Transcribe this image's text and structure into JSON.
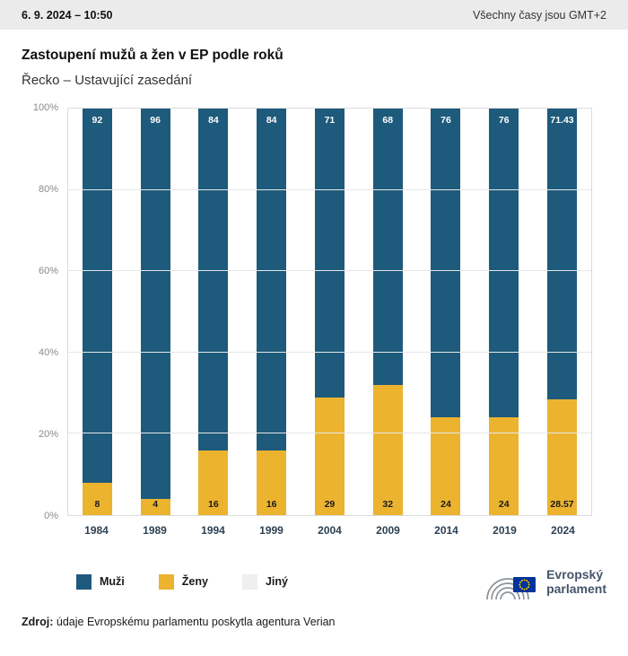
{
  "header": {
    "datetime": "6. 9. 2024 – 10:50",
    "timezone_note": "Všechny časy jsou GMT+2"
  },
  "title": "Zastoupení mužů a žen v EP podle roků",
  "subtitle": "Řecko – Ustavující zasedání",
  "chart_data": {
    "type": "bar",
    "stacked": true,
    "title": "Zastoupení mužů a žen v EP podle roků",
    "categories": [
      "1984",
      "1989",
      "1994",
      "1999",
      "2004",
      "2009",
      "2014",
      "2019",
      "2024"
    ],
    "series": [
      {
        "name": "Muži",
        "color": "#1e5a7b",
        "values": [
          92,
          96,
          84,
          84,
          71,
          68,
          76,
          76,
          71.43
        ],
        "labels": [
          "92",
          "96",
          "84",
          "84",
          "71",
          "68",
          "76",
          "76",
          "71.43"
        ]
      },
      {
        "name": "Ženy",
        "color": "#ecb32f",
        "values": [
          8,
          4,
          16,
          16,
          29,
          32,
          24,
          24,
          28.57
        ],
        "labels": [
          "8",
          "4",
          "16",
          "16",
          "29",
          "32",
          "24",
          "24",
          "28.57"
        ]
      },
      {
        "name": "Jiný",
        "color": "#efefef",
        "values": [
          0,
          0,
          0,
          0,
          0,
          0,
          0,
          0,
          0
        ],
        "labels": [
          "",
          "",
          "",
          "",
          "",
          "",
          "",
          "",
          ""
        ]
      }
    ],
    "ylim": [
      0,
      100
    ],
    "yticks": [
      "0%",
      "20%",
      "40%",
      "60%",
      "80%",
      "100%"
    ],
    "grid": true,
    "legend_position": "bottom"
  },
  "legend": [
    {
      "label": "Muži",
      "color": "#1e5a7b"
    },
    {
      "label": "Ženy",
      "color": "#ecb32f"
    },
    {
      "label": "Jiný",
      "color": "#efefef"
    }
  ],
  "footer": {
    "source_label": "Zdroj:",
    "source_text": " údaje Evropskému parlamentu poskytla agentura Verian"
  },
  "logo": {
    "text_line1": "Evropský",
    "text_line2": "parlament",
    "flag_blue": "#003399",
    "star_yellow": "#ffcc00",
    "arc_gray": "#8d9499"
  }
}
